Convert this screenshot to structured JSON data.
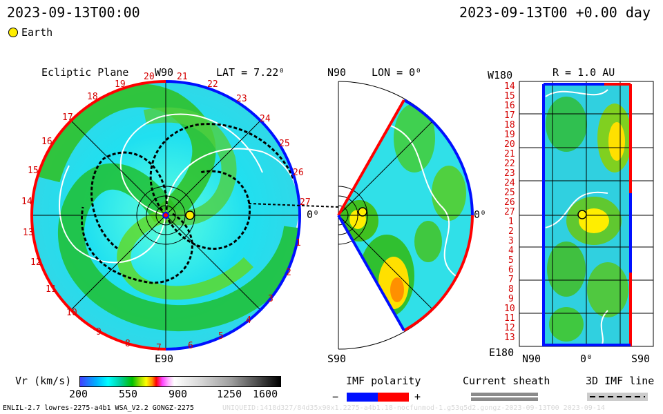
{
  "header": {
    "date_left": "2023-09-13T00:00",
    "date_right": "2023-09-13T00 +0.00 day",
    "legend_earth": "Earth"
  },
  "ecliptic": {
    "title": "Ecliptic Plane",
    "top_label": "W90",
    "lat_label": "LAT = 7.22⁰",
    "bottom_label": "E90",
    "right_label": "0⁰",
    "carrington_labels": [
      "20",
      "21",
      "22",
      "23",
      "24",
      "25",
      "26",
      "27",
      "1",
      "2",
      "3",
      "4",
      "5",
      "6",
      "7",
      "8",
      "9",
      "10",
      "11",
      "12",
      "13",
      "14",
      "15",
      "16",
      "17",
      "18",
      "19"
    ]
  },
  "meridional": {
    "top_label": "N90",
    "lon_label": "LON = 0⁰",
    "bottom_label": "S90",
    "right_label": "0⁰"
  },
  "radial": {
    "top_left_label": "W180",
    "r_label": "R = 1.0 AU",
    "bottom_left_label": "E180",
    "bottom_axis": [
      "N90",
      "0⁰",
      "S90"
    ],
    "row_labels": [
      "14",
      "15",
      "16",
      "17",
      "18",
      "19",
      "20",
      "21",
      "22",
      "23",
      "24",
      "25",
      "26",
      "27",
      "1",
      "2",
      "3",
      "4",
      "5",
      "6",
      "7",
      "8",
      "9",
      "10",
      "11",
      "12",
      "13"
    ]
  },
  "colorbar": {
    "label": "Vr (km/s)",
    "ticks": [
      "200",
      "550",
      "900",
      "1250",
      "1600"
    ]
  },
  "imf": {
    "title": "IMF polarity",
    "minus": "−",
    "plus": "+"
  },
  "sheath": {
    "title": "Current sheath"
  },
  "imf_line": {
    "title": "3D IMF line"
  },
  "footer": {
    "left": "ENLIL-2.7 lowres-2275-a4b1 WSA_V2.2 GONGZ-2275",
    "right": "UNIQUEID:1418d327/84d35x90x1.2275-a4b1.18-nocfunmod-1.g53q5d2.gongz-2023-09-13T00   2023-09-14"
  },
  "colors": {
    "blue_polarity": "#0010ff",
    "red_polarity": "#ff0000",
    "earth": "#ffee00"
  }
}
